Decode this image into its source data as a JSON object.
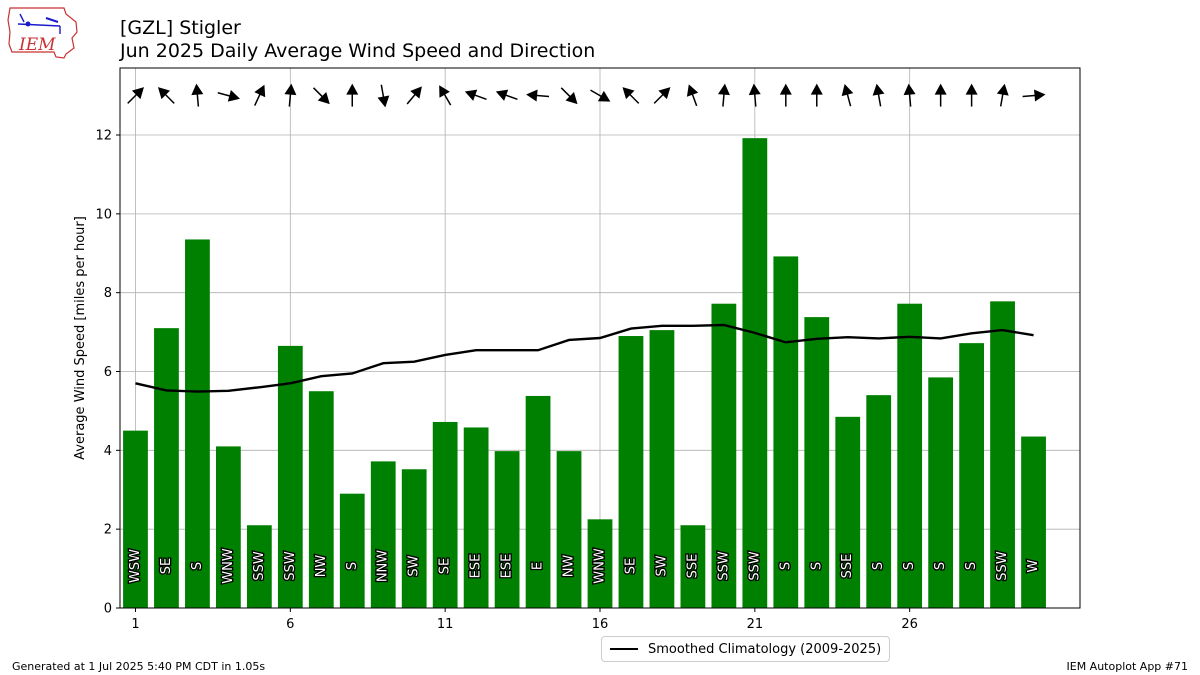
{
  "header": {
    "title_line1": "[GZL] Stigler",
    "title_line2": "Jun 2025 Daily Average Wind Speed and Direction",
    "logo_text": "IEM"
  },
  "footer": {
    "generated": "Generated at 1 Jul 2025 5:40 PM CDT in 1.05s",
    "app": "IEM Autoplot App #71"
  },
  "legend": {
    "label": "Smoothed Climatology (2009-2025)",
    "placement": "lower-center"
  },
  "chart_data": {
    "type": "bar",
    "title": "[GZL] Stigler Jun 2025 Daily Average Wind Speed and Direction",
    "xlabel": "",
    "ylabel": "Average Wind Speed [miles per hour]",
    "xlim": [
      0.5,
      31.5
    ],
    "ylim": [
      0,
      13.7
    ],
    "xticks": [
      1,
      6,
      11,
      16,
      21,
      26
    ],
    "yticks": [
      0,
      2,
      4,
      6,
      8,
      10,
      12
    ],
    "grid": true,
    "bar_color": "#008000",
    "line_color": "#000000",
    "days": [
      1,
      2,
      3,
      4,
      5,
      6,
      7,
      8,
      9,
      10,
      11,
      12,
      13,
      14,
      15,
      16,
      17,
      18,
      19,
      20,
      21,
      22,
      23,
      24,
      25,
      26,
      27,
      28,
      29,
      30
    ],
    "values": [
      4.5,
      7.1,
      9.35,
      4.1,
      2.1,
      6.65,
      5.5,
      2.9,
      3.72,
      3.52,
      4.72,
      4.58,
      3.98,
      5.38,
      3.98,
      2.25,
      6.9,
      7.05,
      2.1,
      7.72,
      11.92,
      8.92,
      7.38,
      4.85,
      5.4,
      7.72,
      5.85,
      6.72,
      7.78,
      4.35
    ],
    "directions": [
      "WSW",
      "SE",
      "S",
      "WNW",
      "SSW",
      "SSW",
      "NW",
      "S",
      "NNW",
      "SW",
      "SE",
      "ESE",
      "ESE",
      "E",
      "NW",
      "WNW",
      "SE",
      "SW",
      "SSE",
      "SSW",
      "SSW",
      "S",
      "S",
      "SSE",
      "S",
      "S",
      "S",
      "S",
      "SSW",
      "W"
    ],
    "arrow_bearings_deg": [
      45,
      315,
      355,
      105,
      25,
      5,
      135,
      0,
      170,
      40,
      330,
      290,
      290,
      275,
      135,
      120,
      315,
      45,
      340,
      5,
      355,
      0,
      0,
      345,
      350,
      355,
      0,
      0,
      10,
      85
    ],
    "series": [
      {
        "name": "Smoothed Climatology (2009-2025)",
        "values": [
          5.7,
          5.52,
          5.49,
          5.51,
          5.6,
          5.7,
          5.88,
          5.95,
          6.21,
          6.25,
          6.42,
          6.54,
          6.54,
          6.54,
          6.8,
          6.85,
          7.09,
          7.16,
          7.16,
          7.18,
          6.98,
          6.74,
          6.83,
          6.87,
          6.84,
          6.88,
          6.84,
          6.97,
          7.05,
          6.92
        ]
      }
    ]
  }
}
